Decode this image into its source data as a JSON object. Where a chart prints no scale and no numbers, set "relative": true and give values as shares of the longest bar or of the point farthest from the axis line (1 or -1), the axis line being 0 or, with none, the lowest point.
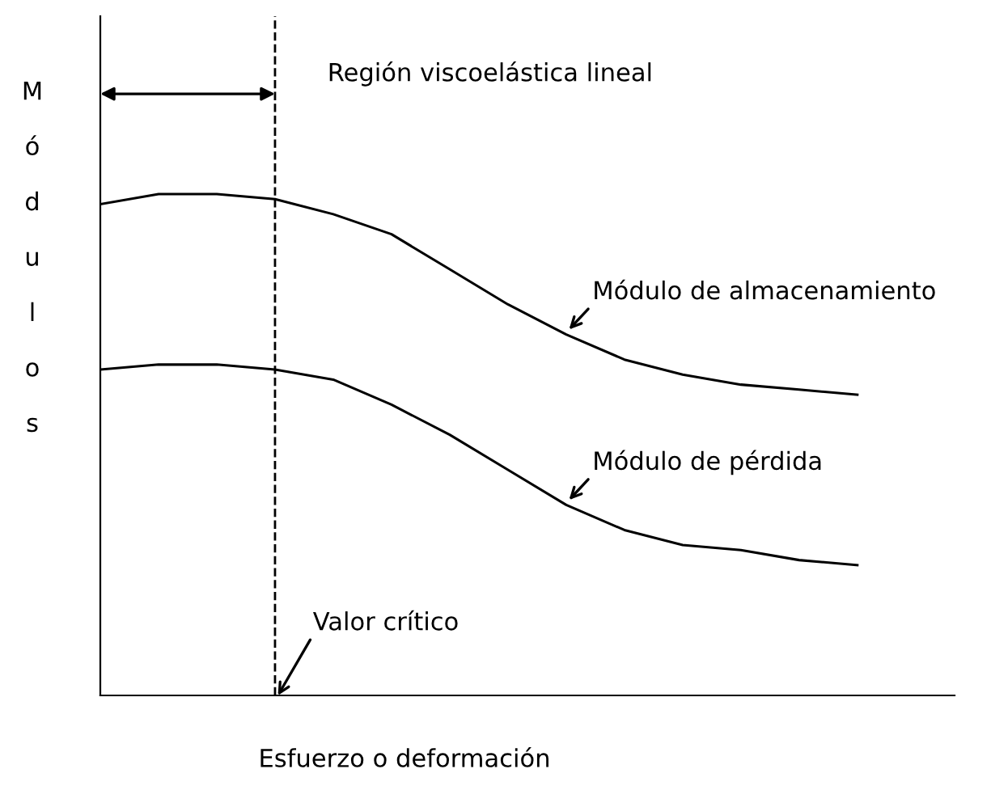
{
  "chart_data": {
    "type": "line",
    "relative": true,
    "xlabel": "Esfuerzo o deformación",
    "ylabel": "Módulos",
    "categories": [
      null,
      null,
      null,
      null,
      null,
      null,
      null,
      null,
      null,
      null,
      null,
      null,
      null,
      null
    ],
    "series": [
      {
        "name": "Módulo de almacenamiento",
        "color": "#000000",
        "values": [
          0.98,
          1.0,
          1.0,
          0.99,
          0.96,
          0.92,
          0.85,
          0.78,
          0.72,
          0.67,
          0.64,
          0.62,
          0.61,
          0.6
        ]
      },
      {
        "name": "Módulo de pérdida",
        "color": "#000000",
        "values": [
          0.65,
          0.66,
          0.66,
          0.65,
          0.63,
          0.58,
          0.52,
          0.45,
          0.38,
          0.33,
          0.3,
          0.29,
          0.27,
          0.26
        ]
      }
    ],
    "annotations": [
      "Región viscoelástica lineal",
      "Valor crítico"
    ],
    "grid": false,
    "marker": "none",
    "line_style": "solid"
  }
}
